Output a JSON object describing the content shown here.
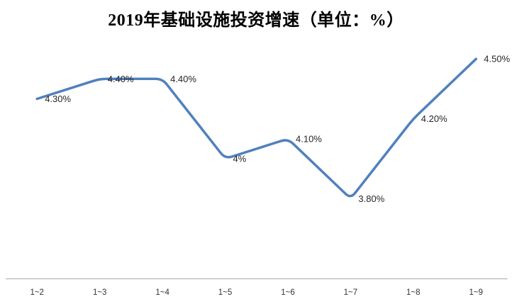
{
  "chart_data": {
    "type": "line",
    "title": "2019年基础设施投资增速（单位：%）",
    "categories": [
      "1~2",
      "1~3",
      "1~4",
      "1~5",
      "1~6",
      "1~7",
      "1~8",
      "1~9"
    ],
    "series": [
      {
        "name": "基础设施投资增速",
        "values": [
          4.3,
          4.4,
          4.4,
          4.0,
          4.1,
          3.8,
          4.2,
          4.5
        ],
        "data_labels": [
          "4.30%",
          "4.40%",
          "4.40%",
          "4%",
          "4.10%",
          "3.80%",
          "4.20%",
          "4.50%"
        ]
      }
    ],
    "xlabel": "",
    "ylabel": "",
    "ylim": [
      3.4,
      4.6
    ],
    "grid": false,
    "legend_position": "none",
    "line_color": "#4F81BD",
    "axis_color": "#A6A6A6",
    "data_label_color": "#262626",
    "tick_label_color": "#333333"
  }
}
